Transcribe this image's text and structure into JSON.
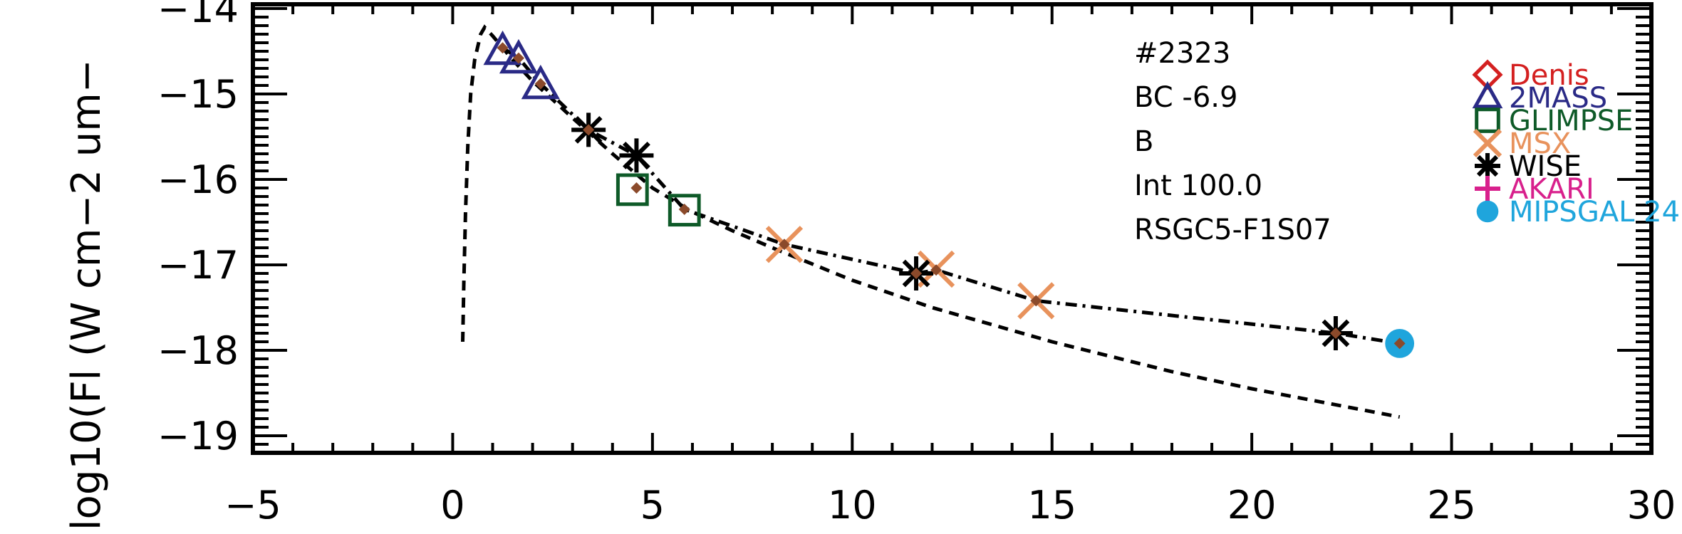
{
  "chart_data": {
    "type": "scatter",
    "title": "",
    "xlabel": "",
    "ylabel": "log10(Fl (W cm−2 um−",
    "xlim": [
      -5,
      30
    ],
    "ylim": [
      -19.2,
      -13.95
    ],
    "x_ticks": [
      -5,
      0,
      5,
      10,
      15,
      20,
      25,
      30
    ],
    "x_tick_labels": [
      "−5",
      "0",
      "5",
      "10",
      "15",
      "20",
      "25",
      "30"
    ],
    "y_ticks": [
      -14,
      -15,
      -16,
      -17,
      -18,
      -19
    ],
    "y_tick_labels": [
      "−14",
      "−15",
      "−16",
      "−17",
      "−18",
      "−19"
    ],
    "grid": false,
    "legend_position": "right",
    "annotations": [
      "#2323",
      "BC -6.9",
      "B",
      "Int 100.0",
      "RSGC5-F1S07"
    ],
    "series": [
      {
        "name": "Denis",
        "marker": "diamond",
        "color": "#d42020",
        "points": []
      },
      {
        "name": "2MASS",
        "marker": "triangle",
        "color": "#2a2a86",
        "points": [
          [
            1.25,
            -14.5
          ],
          [
            1.65,
            -14.6
          ],
          [
            2.2,
            -14.9
          ]
        ]
      },
      {
        "name": "GLIMPSE",
        "marker": "square",
        "color": "#0e5a28",
        "points": [
          [
            4.5,
            -16.12
          ],
          [
            5.8,
            -16.36
          ]
        ]
      },
      {
        "name": "MSX",
        "marker": "x",
        "color": "#e8925c",
        "points": [
          [
            8.3,
            -16.76
          ],
          [
            12.1,
            -17.05
          ],
          [
            14.6,
            -17.42
          ]
        ]
      },
      {
        "name": "WISE",
        "marker": "asterisk",
        "color": "#000000",
        "points": [
          [
            3.4,
            -15.42
          ],
          [
            4.6,
            -15.72
          ],
          [
            11.6,
            -17.1
          ],
          [
            22.1,
            -17.8
          ]
        ]
      },
      {
        "name": "AKARI",
        "marker": "plus",
        "color": "#d8208c",
        "points": []
      },
      {
        "name": "MIPSGAL 24",
        "marker": "circle",
        "color": "#1fa5dc",
        "points": [
          [
            23.7,
            -17.92
          ]
        ]
      }
    ],
    "model_points": {
      "color": "#8b4a2b",
      "points": [
        [
          1.25,
          -14.46
        ],
        [
          1.65,
          -14.58
        ],
        [
          2.2,
          -14.88
        ],
        [
          3.4,
          -15.42
        ],
        [
          4.6,
          -16.1
        ],
        [
          5.8,
          -16.35
        ],
        [
          8.3,
          -16.76
        ],
        [
          11.6,
          -17.1
        ],
        [
          12.1,
          -17.06
        ],
        [
          14.6,
          -17.42
        ],
        [
          22.1,
          -17.8
        ],
        [
          23.7,
          -17.92
        ]
      ]
    },
    "fit_curve_dashdot": [
      [
        1.25,
        -14.46
      ],
      [
        1.65,
        -14.58
      ],
      [
        2.2,
        -14.88
      ],
      [
        3.4,
        -15.42
      ],
      [
        4.6,
        -15.72
      ],
      [
        5.8,
        -16.35
      ],
      [
        8.3,
        -16.76
      ],
      [
        11.6,
        -17.1
      ],
      [
        12.1,
        -17.06
      ],
      [
        14.6,
        -17.42
      ],
      [
        22.1,
        -17.8
      ],
      [
        23.7,
        -17.92
      ]
    ],
    "blackbody_curve_dashed": [
      [
        0.25,
        -17.9
      ],
      [
        0.28,
        -17.2
      ],
      [
        0.32,
        -16.4
      ],
      [
        0.38,
        -15.6
      ],
      [
        0.45,
        -15.0
      ],
      [
        0.55,
        -14.6
      ],
      [
        0.7,
        -14.3
      ],
      [
        0.8,
        -14.22
      ],
      [
        1.0,
        -14.32
      ],
      [
        1.5,
        -14.6
      ],
      [
        2.0,
        -14.85
      ],
      [
        3.0,
        -15.28
      ],
      [
        4.0,
        -15.7
      ],
      [
        5.0,
        -16.1
      ],
      [
        6.0,
        -16.38
      ],
      [
        7.0,
        -16.6
      ],
      [
        8.0,
        -16.8
      ],
      [
        10.0,
        -17.18
      ],
      [
        12.0,
        -17.5
      ],
      [
        15.0,
        -17.9
      ],
      [
        18.0,
        -18.25
      ],
      [
        20.0,
        -18.45
      ],
      [
        23.7,
        -18.78
      ]
    ]
  }
}
